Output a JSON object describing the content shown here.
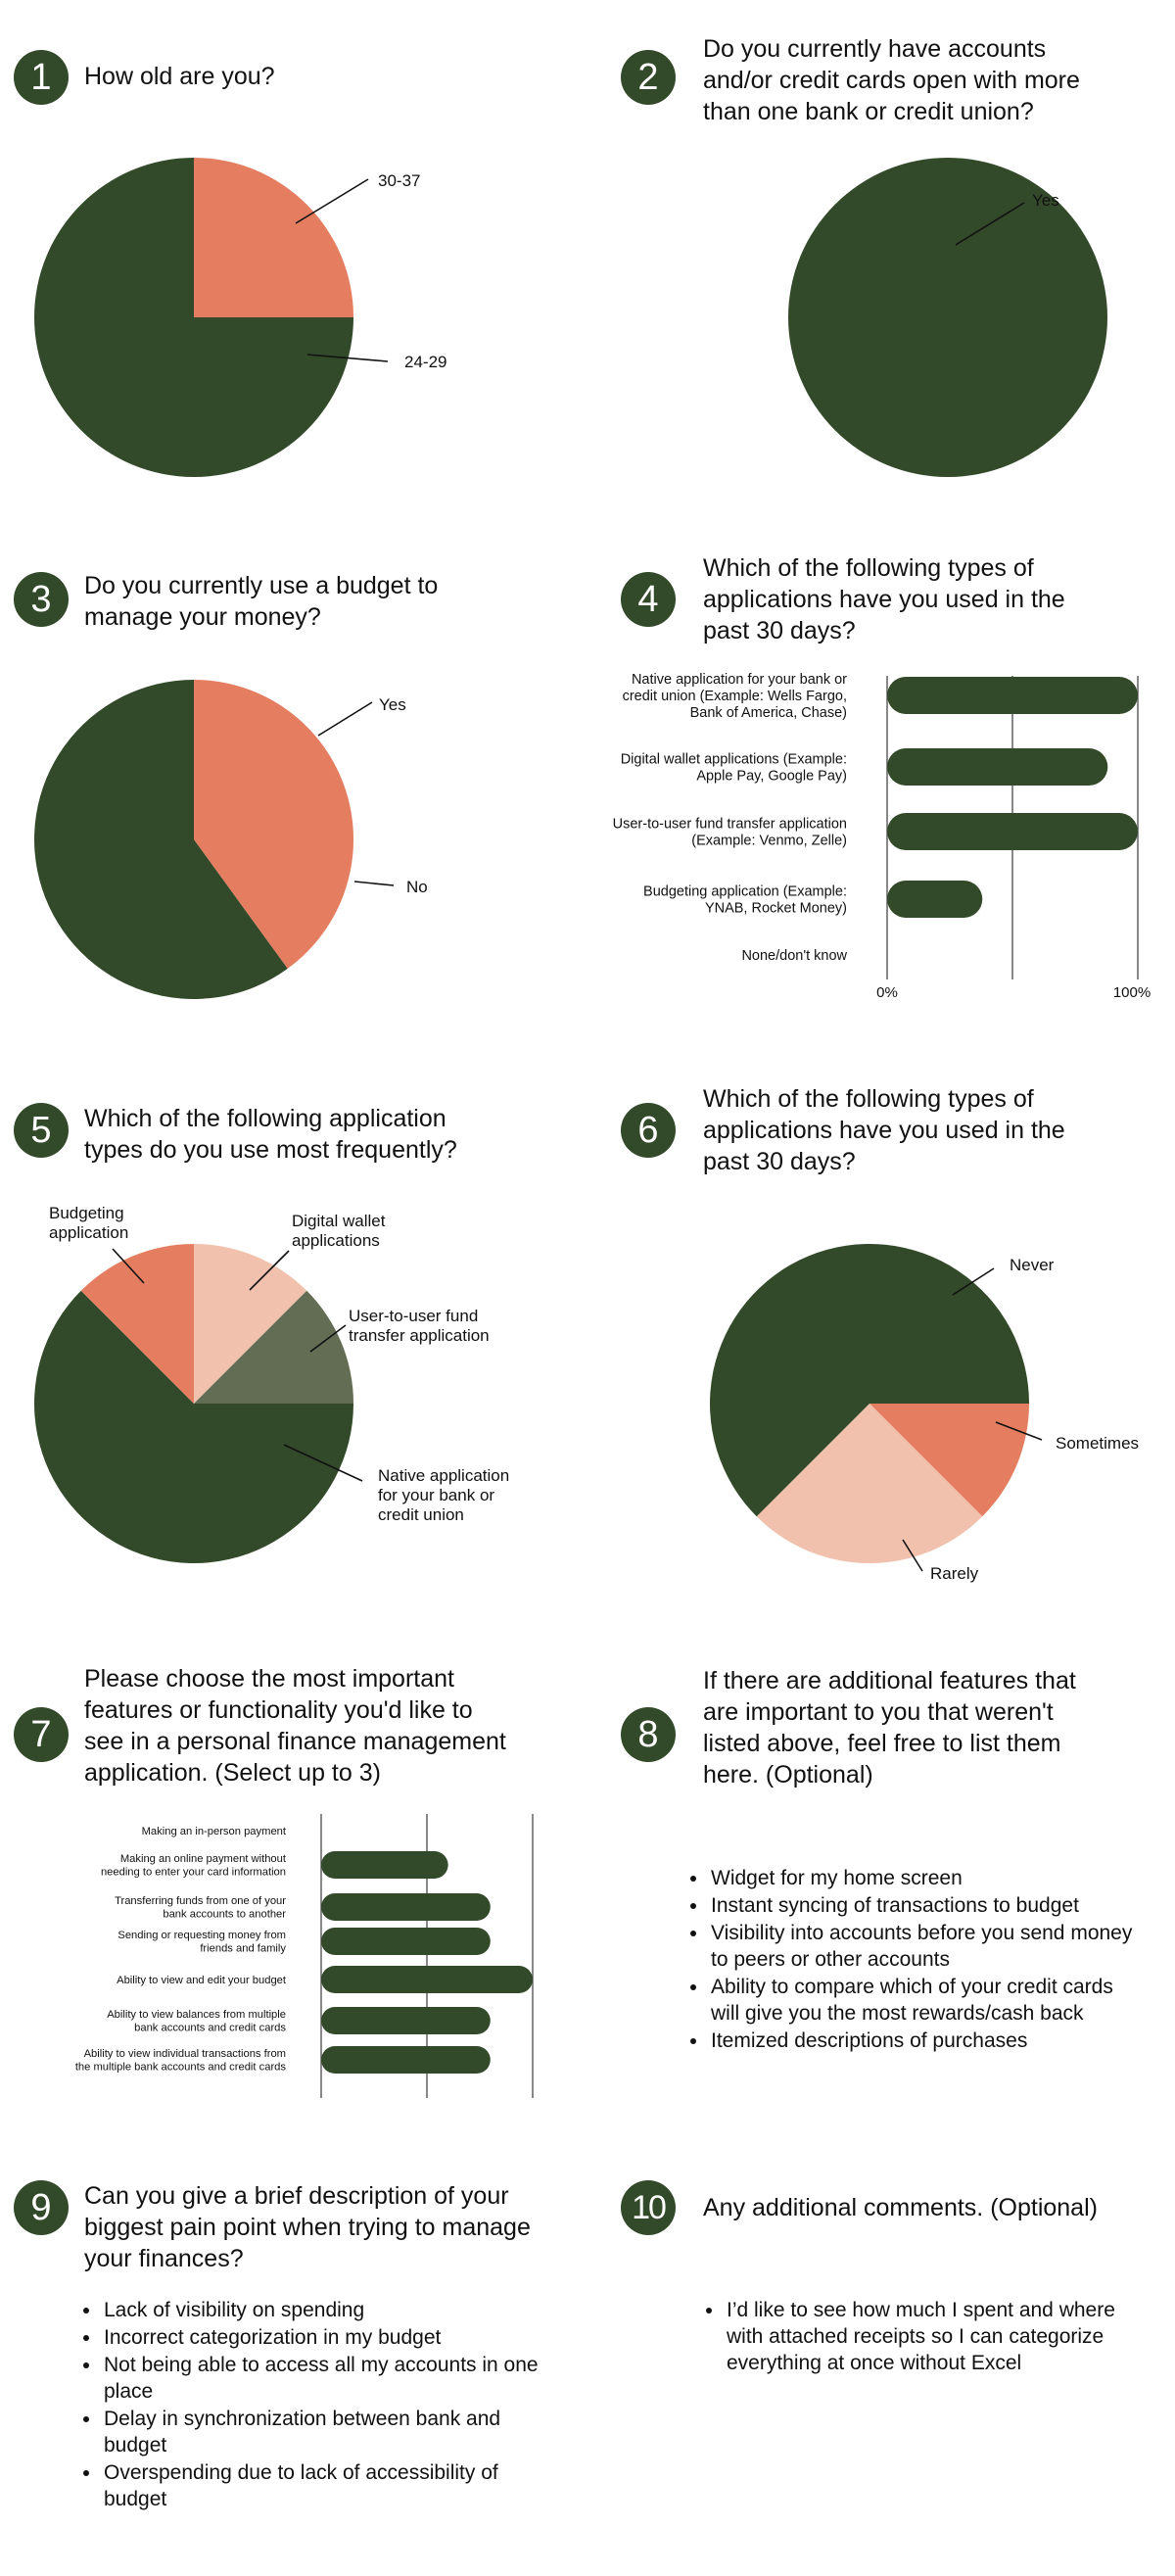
{
  "colors": {
    "dark_green": "#334a2a",
    "coral": "#e57e60",
    "peach": "#f1c1ae",
    "grey_green": "#626d54"
  },
  "questions": [
    {
      "number": "1",
      "title_lines": [
        "How old are you?"
      ]
    },
    {
      "number": "2",
      "title_lines": [
        "Do you currently have accounts",
        "and/or credit cards open with more",
        "than one bank or credit union?"
      ]
    },
    {
      "number": "3",
      "title_lines": [
        "Do you currently use a budget to",
        "manage your money?"
      ]
    },
    {
      "number": "4",
      "title_lines": [
        "Which of the following types of",
        "applications have you used in the",
        "past 30 days?"
      ]
    },
    {
      "number": "5",
      "title_lines": [
        "Which of the following application",
        "types do you use most frequently?"
      ]
    },
    {
      "number": "6",
      "title_lines": [
        "Which of the following types of",
        "applications have you used in the",
        "past 30 days?"
      ]
    },
    {
      "number": "7",
      "title_lines": [
        "Please choose the most important",
        "features or functionality you'd like to",
        "see in a personal finance management",
        "application. (Select up to 3)"
      ]
    },
    {
      "number": "8",
      "title_lines": [
        "If there are additional features that",
        "are important to you that weren't",
        "listed above, feel free to list them",
        "here. (Optional)"
      ]
    },
    {
      "number": "9",
      "title_lines": [
        "Can you give a brief description of your",
        "biggest pain point when trying to manage",
        "your finances?"
      ]
    },
    {
      "number": "10",
      "title_lines": [
        "Any additional comments. (Optional)"
      ]
    }
  ],
  "answers": {
    "q8": [
      [
        "Widget for my home screen"
      ],
      [
        "Instant syncing of transactions to budget"
      ],
      [
        "Visibility into accounts before you send money",
        "to peers or other accounts"
      ],
      [
        "Ability to compare which of your credit cards",
        "will give you the most rewards/cash back"
      ],
      [
        "Itemized descriptions of purchases"
      ]
    ],
    "q9": [
      [
        "Lack of visibility on spending"
      ],
      [
        "Incorrect categorization in my budget"
      ],
      [
        "Not being able to access all my accounts in one",
        "place"
      ],
      [
        "Delay in synchronization between bank and",
        "budget"
      ],
      [
        "Overspending due to lack of accessibility of",
        "budget"
      ]
    ],
    "q10": [
      [
        "I’d like to see how much I spent and where",
        "with attached receipts so I can categorize",
        "everything at once without Excel"
      ]
    ]
  },
  "chart_data": [
    {
      "question": "1",
      "type": "pie",
      "slices": [
        {
          "label": "30-37",
          "value": 25,
          "color": "#e57e60"
        },
        {
          "label": "24-29",
          "value": 75,
          "color": "#334a2a"
        }
      ]
    },
    {
      "question": "2",
      "type": "pie",
      "slices": [
        {
          "label": "Yes",
          "value": 100,
          "color": "#334a2a"
        }
      ]
    },
    {
      "question": "3",
      "type": "pie",
      "slices": [
        {
          "label": "Yes",
          "value": 60,
          "color": "#334a2a"
        },
        {
          "label": "No",
          "value": 40,
          "color": "#e57e60"
        }
      ]
    },
    {
      "question": "4",
      "type": "bar",
      "orientation": "horizontal",
      "categories": [
        [
          "Native application for your bank or",
          "credit union (Example: Wells Fargo,",
          "Bank of America, Chase)"
        ],
        [
          "Digital wallet applications (Example:",
          "Apple Pay, Google Pay)"
        ],
        [
          "User-to-user fund transfer application",
          "(Example: Venmo, Zelle)"
        ],
        [
          "Budgeting application (Example:",
          "YNAB, Rocket Money)"
        ],
        [
          "None/don't know"
        ]
      ],
      "values": [
        100,
        88,
        100,
        38,
        0
      ],
      "xlim": [
        0,
        100
      ],
      "tick_labels": [
        "0%",
        "100%"
      ],
      "grid": true
    },
    {
      "question": "5",
      "type": "pie",
      "slices": [
        {
          "label": [
            "Digital wallet",
            "applications"
          ],
          "value": 12.5,
          "color": "#f1c1ae"
        },
        {
          "label": [
            "User-to-user fund",
            "transfer application"
          ],
          "value": 12.5,
          "color": "#626d54"
        },
        {
          "label": [
            "Native application",
            "for your bank or",
            "credit union"
          ],
          "value": 62.5,
          "color": "#334a2a"
        },
        {
          "label": [
            "Budgeting",
            "application"
          ],
          "value": 12.5,
          "color": "#e57e60"
        }
      ]
    },
    {
      "question": "6",
      "type": "pie",
      "slices": [
        {
          "label": "Sometimes",
          "value": 12.5,
          "color": "#e57e60"
        },
        {
          "label": "Rarely",
          "value": 25,
          "color": "#f1c1ae"
        },
        {
          "label": "Never",
          "value": 62.5,
          "color": "#334a2a"
        }
      ]
    },
    {
      "question": "7",
      "type": "bar",
      "orientation": "horizontal",
      "categories": [
        [
          "Making an in-person payment"
        ],
        [
          "Making an online payment without",
          "needing to enter your card information"
        ],
        [
          "Transferring funds from one of your",
          "bank accounts to another"
        ],
        [
          "Sending or requesting money from",
          "friends and family"
        ],
        [
          "Ability to view and edit your budget"
        ],
        [
          "Ability to view balances from multiple",
          "bank accounts and credit cards"
        ],
        [
          "Ability to view individual transactions from",
          "the multiple bank accounts and credit cards"
        ]
      ],
      "values": [
        0,
        60,
        80,
        80,
        100,
        80,
        80
      ],
      "xlim": [
        0,
        100
      ],
      "grid": true
    }
  ]
}
